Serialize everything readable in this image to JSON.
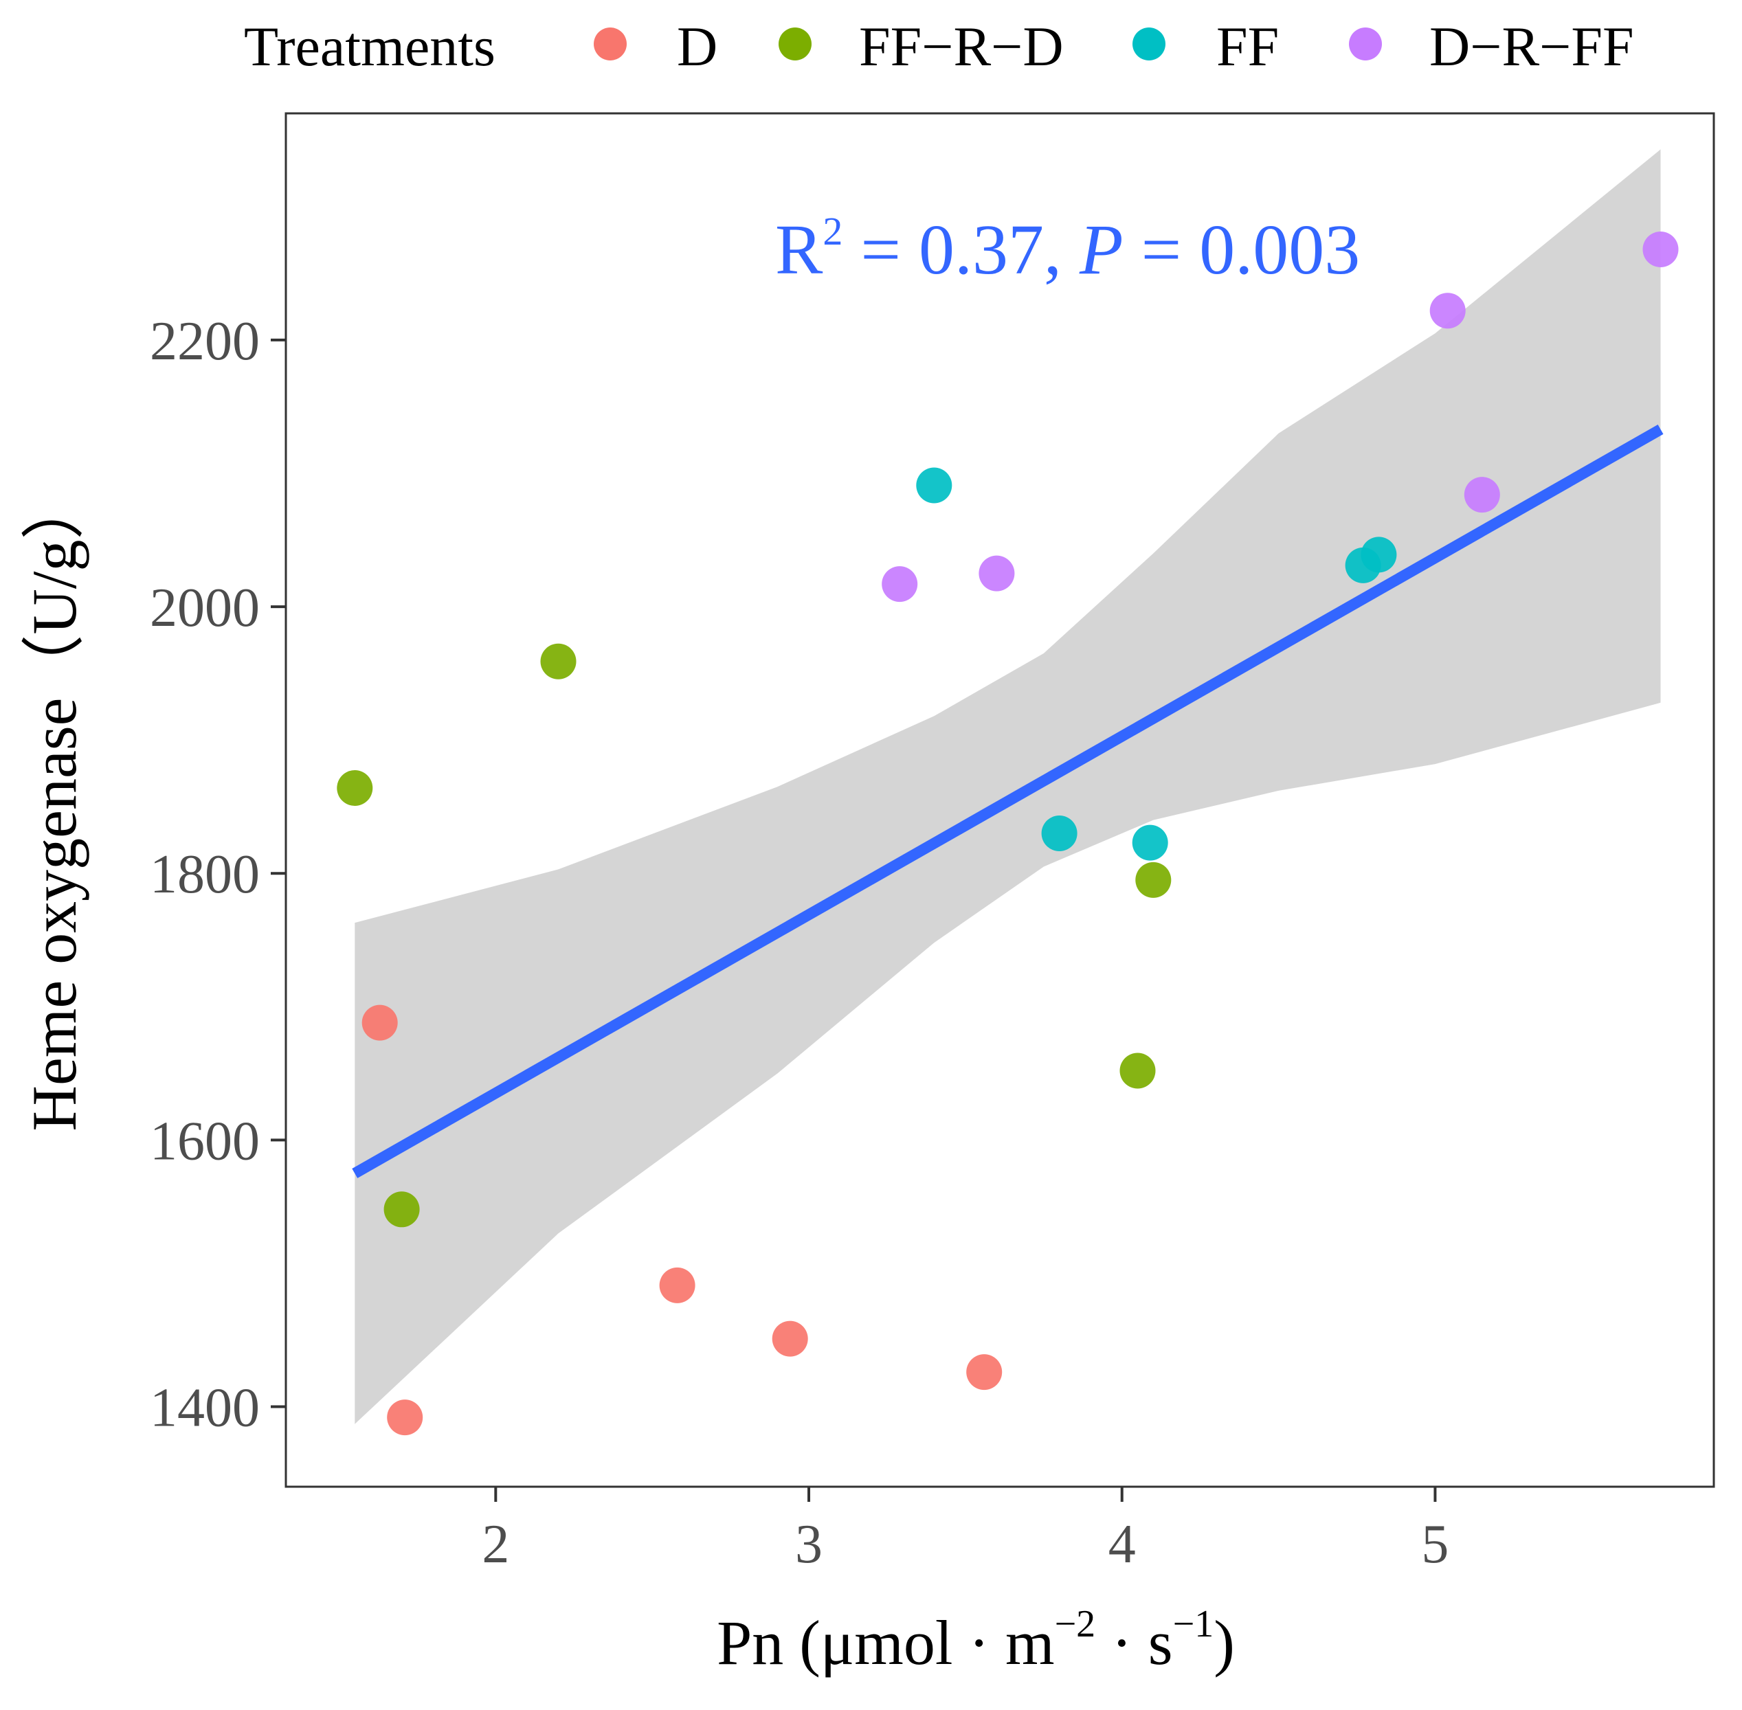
{
  "chart_data": {
    "type": "scatter",
    "title": "",
    "xlabel": "Pn (μmol · m⁻² · s⁻¹)",
    "xlabel_parts": {
      "main": "Pn (μmol · m",
      "sup1": "−2",
      "mid": " · s",
      "sup2": "−1",
      "end": ")"
    },
    "ylabel": "Heme oxygenase（U/g）",
    "xlim": [
      1.33,
      5.89
    ],
    "ylim": [
      1340,
      2370
    ],
    "xticks": [
      2,
      3,
      4,
      5
    ],
    "yticks": [
      1400,
      1600,
      1800,
      2000,
      2200
    ],
    "grid": false,
    "legend": {
      "title": "Treatments",
      "position": "top",
      "entries": [
        {
          "label": "D",
          "color": "#F8766D"
        },
        {
          "label": "FF−R−D",
          "color": "#7CAE00"
        },
        {
          "label": "FF",
          "color": "#00BFC4"
        },
        {
          "label": "D−R−FF",
          "color": "#C77CFF"
        }
      ]
    },
    "series": [
      {
        "name": "D",
        "color": "#F8766D",
        "points": [
          [
            1.63,
            1688
          ],
          [
            1.71,
            1392
          ],
          [
            2.58,
            1491
          ],
          [
            2.94,
            1451
          ],
          [
            3.56,
            1426
          ]
        ]
      },
      {
        "name": "FF−R−D",
        "color": "#7CAE00",
        "points": [
          [
            1.55,
            1864
          ],
          [
            1.7,
            1548
          ],
          [
            2.2,
            1959
          ],
          [
            4.05,
            1652
          ],
          [
            4.1,
            1795
          ]
        ]
      },
      {
        "name": "FF",
        "color": "#00BFC4",
        "points": [
          [
            3.4,
            2091
          ],
          [
            3.8,
            1830
          ],
          [
            4.09,
            1823
          ],
          [
            4.77,
            2031
          ],
          [
            4.82,
            2039
          ]
        ]
      },
      {
        "name": "D−R−FF",
        "color": "#C77CFF",
        "points": [
          [
            3.29,
            2017
          ],
          [
            3.6,
            2025
          ],
          [
            5.04,
            2222
          ],
          [
            5.15,
            2084
          ],
          [
            5.72,
            2268
          ]
        ]
      }
    ],
    "regression": {
      "color": "#3366FF",
      "x_range": [
        1.55,
        5.72
      ],
      "y_range": [
        1575,
        2133
      ],
      "ci_band": [
        {
          "x": 1.55,
          "lower": 1387,
          "upper": 1763
        },
        {
          "x": 2.2,
          "lower": 1530,
          "upper": 1803
        },
        {
          "x": 2.9,
          "lower": 1650,
          "upper": 1865
        },
        {
          "x": 3.4,
          "lower": 1748,
          "upper": 1918
        },
        {
          "x": 3.75,
          "lower": 1805,
          "upper": 1965
        },
        {
          "x": 4.1,
          "lower": 1840,
          "upper": 2040
        },
        {
          "x": 4.5,
          "lower": 1862,
          "upper": 2130
        },
        {
          "x": 5.0,
          "lower": 1882,
          "upper": 2205
        },
        {
          "x": 5.72,
          "lower": 1928,
          "upper": 2343
        }
      ]
    },
    "annotation": {
      "r_label": "R",
      "r_sup": "2",
      "r_value_text": " = 0.37, ",
      "p_label": "P",
      "p_value_text": " = 0.003"
    }
  }
}
